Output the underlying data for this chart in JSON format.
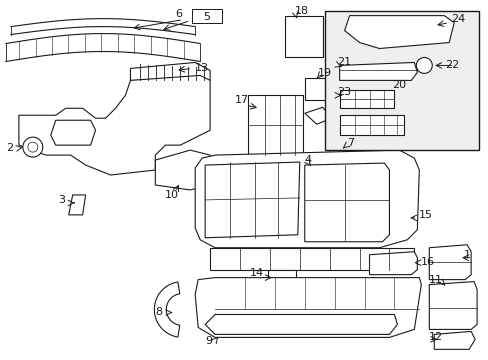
{
  "title": "",
  "bg_color": "#ffffff",
  "line_color": "#1a1a1a",
  "fig_width": 4.89,
  "fig_height": 3.6,
  "dpi": 100
}
